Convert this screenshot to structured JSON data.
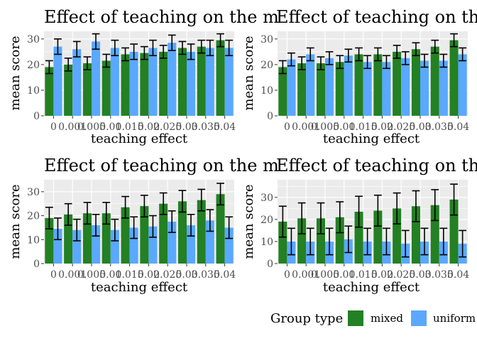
{
  "colors": {
    "mixed": "#238023",
    "uniform": "#5aa8ff",
    "panel_bg": "#ebebeb",
    "grid": "#ffffff",
    "axis_text": "#4d4d4d",
    "error_bar": "#000000"
  },
  "legend": {
    "title": "Group type",
    "placement": "bottom-right",
    "items": [
      {
        "key": "mixed",
        "label": "mixed"
      },
      {
        "key": "uniform",
        "label": "uniform"
      }
    ]
  },
  "chart_data": [
    {
      "type": "bar",
      "title": "Effect of teaching on the m",
      "xlabel": "teaching effect",
      "ylabel": "mean score",
      "ylim": [
        0,
        33
      ],
      "yticks": [
        0,
        10,
        20,
        30
      ],
      "categories": [
        "0",
        "0.001",
        "0.005",
        "0.01",
        "0.015",
        "0.02",
        "0.025",
        "0.03",
        "0.035",
        "0.04"
      ],
      "series": [
        {
          "name": "mixed",
          "values": [
            19,
            20,
            20.5,
            21.5,
            24,
            24.5,
            25,
            26.5,
            27,
            29.5
          ],
          "err": [
            2.5,
            2.5,
            2.5,
            2.5,
            2.5,
            2.5,
            2.5,
            2.5,
            2.5,
            2.5
          ]
        },
        {
          "name": "uniform",
          "values": [
            27,
            26,
            29,
            26.5,
            25,
            26.5,
            28.5,
            25,
            26.5,
            26.5
          ],
          "err": [
            3,
            3,
            3,
            3,
            3,
            3,
            3,
            3,
            3,
            3
          ]
        }
      ],
      "grid": true
    },
    {
      "type": "bar",
      "title": "Effect of teaching on the m",
      "xlabel": "teaching effect",
      "ylabel": "mean score",
      "ylim": [
        0,
        33
      ],
      "yticks": [
        0,
        10,
        20,
        30
      ],
      "categories": [
        "0",
        "0.001",
        "0.005",
        "0.01",
        "0.015",
        "0.02",
        "0.025",
        "0.03",
        "0.035",
        "0.04"
      ],
      "series": [
        {
          "name": "mixed",
          "values": [
            19,
            20.5,
            20.5,
            21,
            24,
            24,
            25,
            26,
            27,
            29.5
          ],
          "err": [
            2.5,
            2.5,
            2.5,
            2.5,
            2.5,
            2.5,
            2.5,
            2.5,
            2.5,
            2.5
          ]
        },
        {
          "name": "uniform",
          "values": [
            22,
            24,
            22.5,
            23.5,
            21,
            21,
            22.5,
            21.5,
            21.5,
            24
          ],
          "err": [
            2.5,
            2.5,
            2.5,
            2.5,
            2.5,
            2.5,
            2.5,
            2.5,
            2.5,
            2.5
          ]
        }
      ],
      "grid": true
    },
    {
      "type": "bar",
      "title": "Effect of teaching on the m",
      "xlabel": "teaching effect",
      "ylabel": "mean score",
      "ylim": [
        0,
        35
      ],
      "yticks": [
        0,
        10,
        20,
        30
      ],
      "categories": [
        "0",
        "0.001",
        "0.005",
        "0.01",
        "0.015",
        "0.02",
        "0.025",
        "0.03",
        "0.035",
        "0.04"
      ],
      "series": [
        {
          "name": "mixed",
          "values": [
            19,
            20.5,
            21,
            21,
            23.5,
            24,
            25,
            26,
            26.5,
            29
          ],
          "err": [
            4.5,
            4.5,
            4.5,
            4.5,
            4.5,
            4.5,
            4.5,
            4.5,
            4.5,
            4.5
          ]
        },
        {
          "name": "uniform",
          "values": [
            14.5,
            14,
            16,
            14,
            15,
            15.5,
            17.5,
            16,
            18,
            15
          ],
          "err": [
            4.5,
            4.5,
            4.5,
            4.5,
            4.5,
            4.5,
            4.5,
            4.5,
            4.5,
            4.5
          ]
        }
      ],
      "grid": true
    },
    {
      "type": "bar",
      "title": "Effect of teaching on the me",
      "xlabel": "teaching effect",
      "ylabel": "mean score",
      "ylim": [
        0,
        38
      ],
      "yticks": [
        0,
        10,
        20,
        30
      ],
      "categories": [
        "0",
        "0.001",
        "0.005",
        "0.01",
        "0.015",
        "0.02",
        "0.025",
        "0.03",
        "0.035",
        "0.04"
      ],
      "series": [
        {
          "name": "mixed",
          "values": [
            19,
            20.5,
            20.5,
            21,
            23.5,
            24,
            25,
            26,
            26.5,
            29
          ],
          "err": [
            7,
            7,
            7,
            7,
            7,
            7,
            7,
            7,
            7,
            7
          ]
        },
        {
          "name": "uniform",
          "values": [
            10,
            10,
            10,
            11,
            10,
            10,
            9,
            10,
            10,
            9
          ],
          "err": [
            6,
            6,
            6,
            6,
            6,
            6,
            6,
            6,
            6,
            6
          ]
        }
      ],
      "grid": true
    }
  ]
}
